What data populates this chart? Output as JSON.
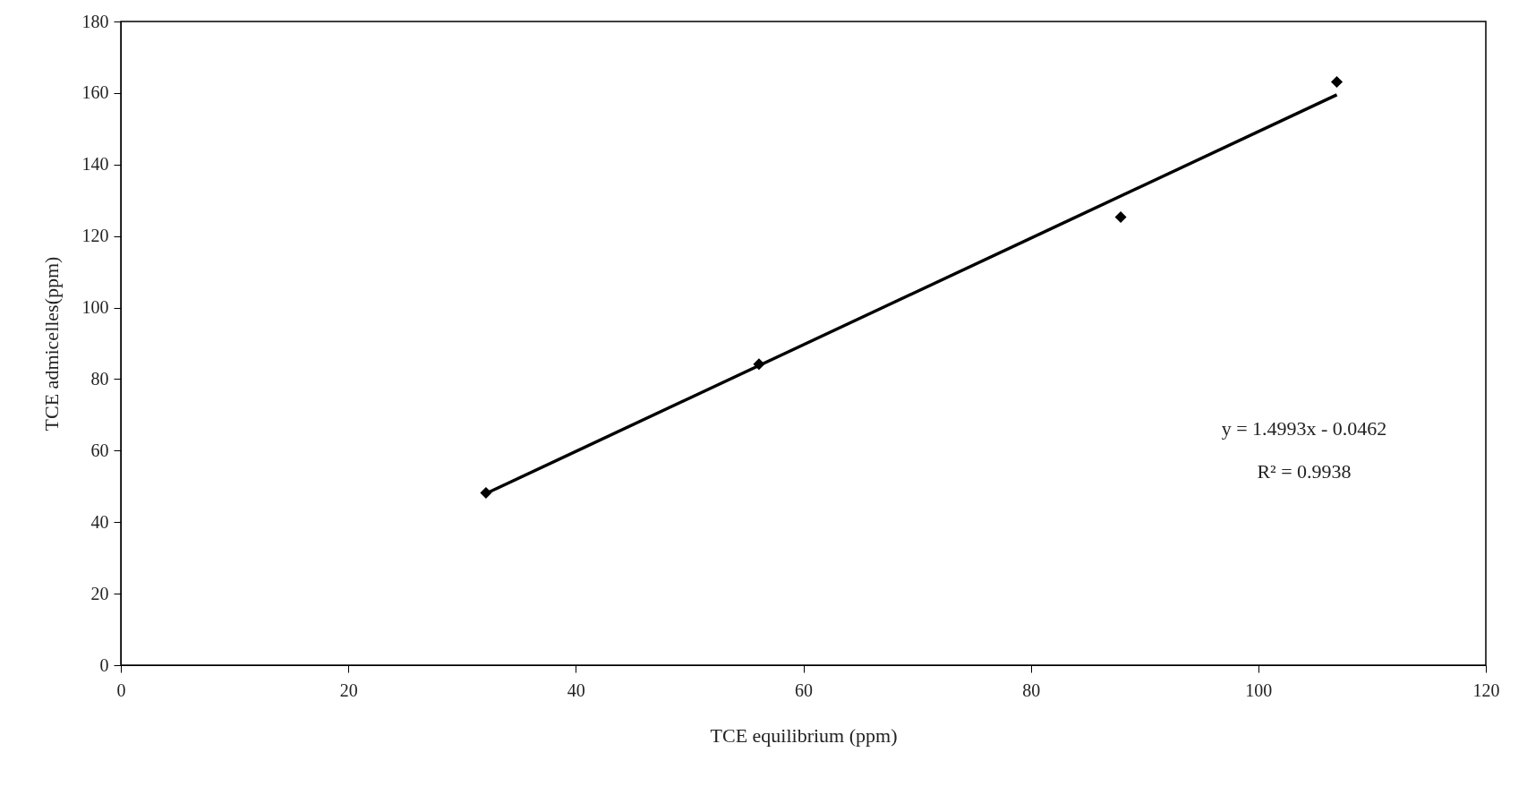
{
  "chart_data": {
    "type": "scatter",
    "xlabel": "TCE equilibrium (ppm)",
    "ylabel": "TCE  admicelles(ppm)",
    "xlim": [
      0,
      120
    ],
    "xticks": [
      0,
      20,
      40,
      60,
      80,
      100,
      120
    ],
    "ylim": [
      0,
      180
    ],
    "yticks": [
      0,
      20,
      40,
      60,
      80,
      100,
      120,
      140,
      160,
      180
    ],
    "series": [
      {
        "color": "#000000",
        "marker": "diamond",
        "x": [
          32.1,
          56.1,
          87.9,
          106.9
        ],
        "values": [
          48.2,
          84.2,
          125.3,
          163.1
        ]
      },
      {
        "type": "line",
        "color": "#000000",
        "marker": "none",
        "line_style": "solid",
        "x": [
          32.1,
          106.9
        ],
        "values": [
          48,
          159.5
        ]
      }
    ],
    "annotations": [
      "y = 1.4993x - 0.0462",
      "R² = 0.9938"
    ]
  }
}
